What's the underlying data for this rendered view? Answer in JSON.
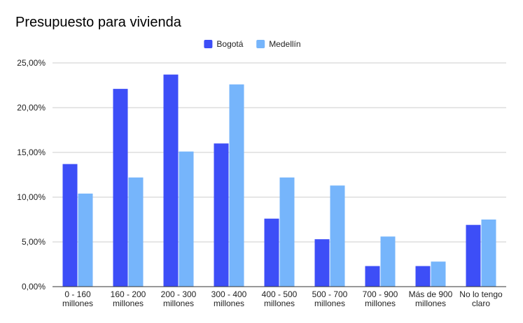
{
  "chart_data": {
    "type": "bar",
    "title": "Presupuesto para vivienda",
    "xlabel": "",
    "ylabel": "",
    "categories": [
      [
        "0 - 160",
        "millones"
      ],
      [
        "160 - 200",
        "millones"
      ],
      [
        "200 - 300",
        "millones"
      ],
      [
        "300 - 400",
        "millones"
      ],
      [
        "400 - 500",
        "millones"
      ],
      [
        "500 - 700",
        "millones"
      ],
      [
        "700 - 900",
        "millones"
      ],
      [
        "Más de 900",
        "millones"
      ],
      [
        "No lo tengo",
        "claro"
      ]
    ],
    "series": [
      {
        "name": "Bogotá",
        "color": "#3d4ef7",
        "values": [
          13.7,
          22.1,
          23.7,
          16.0,
          7.6,
          5.3,
          2.3,
          2.3,
          6.9
        ]
      },
      {
        "name": "Medellín",
        "color": "#76b5fb",
        "values": [
          10.4,
          12.2,
          15.1,
          22.6,
          12.2,
          11.3,
          5.6,
          2.8,
          7.5
        ]
      }
    ],
    "ylim": [
      0,
      25
    ],
    "yticks": [
      "0,00%",
      "5,00%",
      "10,00%",
      "15,00%",
      "20,00%",
      "25,00%"
    ],
    "grid": true,
    "legend_position": "top-center"
  }
}
